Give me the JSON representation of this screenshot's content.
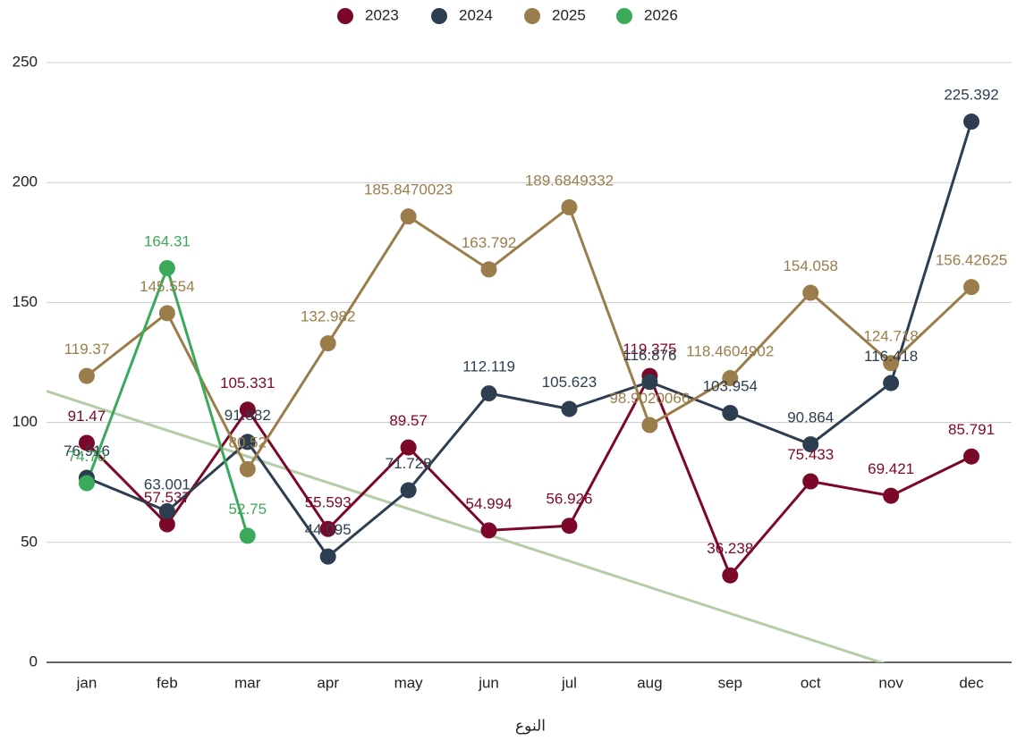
{
  "chart_data": {
    "type": "line",
    "x_label": "النوع",
    "categories": [
      "jan",
      "feb",
      "mar",
      "apr",
      "may",
      "jun",
      "jul",
      "aug",
      "sep",
      "oct",
      "nov",
      "dec"
    ],
    "series": [
      {
        "name": "2023",
        "color": "#7b0828",
        "values": [
          91.47,
          57.537,
          105.331,
          55.593,
          89.57,
          54.994,
          56.926,
          119.375,
          36.238,
          75.433,
          69.421,
          85.791
        ]
      },
      {
        "name": "2024",
        "color": "#2d3e50",
        "values": [
          76.916,
          63.001,
          91.882,
          44.095,
          71.728,
          112.119,
          105.623,
          116.876,
          103.954,
          90.864,
          116.418,
          225.392
        ]
      },
      {
        "name": "2025",
        "color": "#9a7d4a",
        "values": [
          119.37,
          145.554,
          80.52,
          132.982,
          185.8470023,
          163.792,
          189.6849332,
          98.9020066,
          118.4604902,
          154.058,
          124.718,
          156.42625
        ]
      },
      {
        "name": "2026",
        "color": "#3aaa5a",
        "values": [
          74.7,
          164.31,
          52.75,
          null,
          null,
          null,
          null,
          null,
          null,
          null,
          null,
          null
        ],
        "value_labels": [
          "74.70",
          "164.31",
          "52.75",
          null,
          null,
          null,
          null,
          null,
          null,
          null,
          null,
          null
        ]
      }
    ],
    "trendline": {
      "color": "#b5cca8",
      "values": [
        107.6,
        96.7,
        85.8,
        74.9,
        64.0,
        53.1,
        42.2,
        31.3,
        20.4,
        9.5,
        -1.4,
        -12.3
      ]
    },
    "ylim": [
      0,
      250
    ],
    "yticks": [
      0,
      50,
      100,
      150,
      200,
      250
    ],
    "grid": true,
    "legend": "top"
  }
}
